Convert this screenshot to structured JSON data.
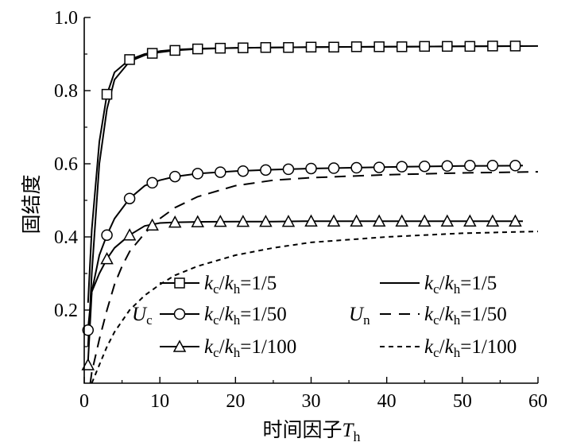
{
  "chart_data": {
    "type": "line",
    "xlabel": "时间因子T<sub>h</sub>",
    "xlabel_parts": {
      "main": "时间因子",
      "symbol": "T",
      "subscript": "h"
    },
    "ylabel": "固结度",
    "xlim": [
      0,
      60
    ],
    "ylim": [
      0,
      1.0
    ],
    "x_ticks": [
      0,
      10,
      20,
      30,
      40,
      50,
      60
    ],
    "y_ticks": [
      0.2,
      0.4,
      0.6,
      0.8,
      1.0
    ],
    "grid": false,
    "legend_placement": "bottom-right inside",
    "legend_group_labels": [
      {
        "symbol": "U",
        "subscript": "c"
      },
      {
        "symbol": "U",
        "subscript": "n"
      }
    ],
    "series": [
      {
        "name": "kc/kh=1/5",
        "label": {
          "k1": "k",
          "s1": "c",
          "k2": "k",
          "s2": "h",
          "ratio": "=1/5"
        },
        "group": "Uc",
        "style": "solid",
        "marker": "square",
        "x": [
          0.5,
          1,
          2,
          3,
          4,
          6,
          8,
          10,
          12,
          15,
          20,
          25,
          30,
          40,
          50,
          58
        ],
        "y": [
          0.22,
          0.42,
          0.66,
          0.79,
          0.85,
          0.885,
          0.9,
          0.908,
          0.912,
          0.915,
          0.917,
          0.918,
          0.919,
          0.92,
          0.921,
          0.922
        ],
        "marker_x": [
          3,
          6,
          9,
          12,
          15,
          18,
          21,
          24,
          27,
          30,
          33,
          36,
          39,
          42,
          45,
          48,
          51,
          54,
          57
        ],
        "marker_y": [
          0.79,
          0.885,
          0.902,
          0.91,
          0.914,
          0.916,
          0.917,
          0.918,
          0.918,
          0.919,
          0.919,
          0.92,
          0.92,
          0.92,
          0.921,
          0.921,
          0.921,
          0.922,
          0.922
        ]
      },
      {
        "name": "kc/kh=1/50",
        "label": {
          "k1": "k",
          "s1": "c",
          "k2": "k",
          "s2": "h",
          "ratio": "=1/50"
        },
        "group": "Uc",
        "style": "solid",
        "marker": "circle",
        "x": [
          0.5,
          1,
          2,
          3,
          4,
          6,
          8,
          10,
          12,
          15,
          20,
          25,
          30,
          40,
          50,
          58
        ],
        "y": [
          0.15,
          0.25,
          0.35,
          0.405,
          0.45,
          0.505,
          0.54,
          0.555,
          0.565,
          0.573,
          0.58,
          0.584,
          0.587,
          0.591,
          0.594,
          0.595
        ],
        "marker_x": [
          0.5,
          3,
          6,
          9,
          12,
          15,
          18,
          21,
          24,
          27,
          30,
          33,
          36,
          39,
          42,
          45,
          48,
          51,
          54,
          57
        ],
        "marker_y": [
          0.145,
          0.405,
          0.505,
          0.548,
          0.565,
          0.573,
          0.577,
          0.58,
          0.583,
          0.585,
          0.587,
          0.588,
          0.589,
          0.59,
          0.592,
          0.593,
          0.594,
          0.595,
          0.595,
          0.595
        ]
      },
      {
        "name": "kc/kh=1/100",
        "label": {
          "k1": "k",
          "s1": "c",
          "k2": "k",
          "s2": "h",
          "ratio": "=1/100"
        },
        "group": "Uc",
        "style": "solid",
        "marker": "triangle",
        "x": [
          0.5,
          1,
          2,
          3,
          4,
          6,
          8,
          10,
          12,
          15,
          20,
          25,
          30,
          40,
          50,
          58
        ],
        "y": [
          0.06,
          0.25,
          0.3,
          0.34,
          0.37,
          0.405,
          0.43,
          0.438,
          0.44,
          0.441,
          0.442,
          0.442,
          0.443,
          0.443,
          0.443,
          0.443
        ],
        "marker_x": [
          0.5,
          3,
          6,
          9,
          12,
          15,
          18,
          21,
          24,
          27,
          30,
          33,
          36,
          39,
          42,
          45,
          48,
          51,
          54,
          57
        ],
        "marker_y": [
          0.05,
          0.34,
          0.405,
          0.432,
          0.44,
          0.441,
          0.442,
          0.442,
          0.442,
          0.442,
          0.443,
          0.443,
          0.443,
          0.443,
          0.443,
          0.443,
          0.443,
          0.443,
          0.443,
          0.443
        ]
      },
      {
        "name": "kc/kh=1/5",
        "label": {
          "k1": "k",
          "s1": "c",
          "k2": "k",
          "s2": "h",
          "ratio": "=1/5"
        },
        "group": "Un",
        "style": "solid",
        "marker": "none",
        "x": [
          0.5,
          1,
          2,
          3,
          4,
          6,
          8,
          10,
          12,
          15,
          20,
          25,
          30,
          40,
          50,
          60
        ],
        "y": [
          0.1,
          0.3,
          0.6,
          0.75,
          0.83,
          0.88,
          0.897,
          0.905,
          0.91,
          0.914,
          0.917,
          0.918,
          0.919,
          0.92,
          0.921,
          0.922
        ]
      },
      {
        "name": "kc/kh=1/50",
        "label": {
          "k1": "k",
          "s1": "c",
          "k2": "k",
          "s2": "h",
          "ratio": "=1/50"
        },
        "group": "Un",
        "style": "dashed",
        "marker": "none",
        "x": [
          0.8,
          1,
          2,
          3,
          4,
          5,
          6,
          8,
          10,
          12,
          15,
          20,
          25,
          30,
          40,
          50,
          60
        ],
        "y": [
          0.0,
          0.03,
          0.12,
          0.2,
          0.27,
          0.32,
          0.36,
          0.41,
          0.45,
          0.48,
          0.51,
          0.54,
          0.555,
          0.562,
          0.57,
          0.575,
          0.578
        ]
      },
      {
        "name": "kc/kh=1/100",
        "label": {
          "k1": "k",
          "s1": "c",
          "k2": "k",
          "s2": "h",
          "ratio": "=1/100"
        },
        "group": "Un",
        "style": "dotted",
        "marker": "none",
        "x": [
          1,
          2,
          3,
          4,
          5,
          6,
          8,
          10,
          12,
          15,
          20,
          25,
          30,
          40,
          50,
          60
        ],
        "y": [
          0.0,
          0.05,
          0.1,
          0.14,
          0.17,
          0.2,
          0.24,
          0.27,
          0.295,
          0.32,
          0.35,
          0.37,
          0.385,
          0.4,
          0.41,
          0.415
        ]
      }
    ]
  }
}
